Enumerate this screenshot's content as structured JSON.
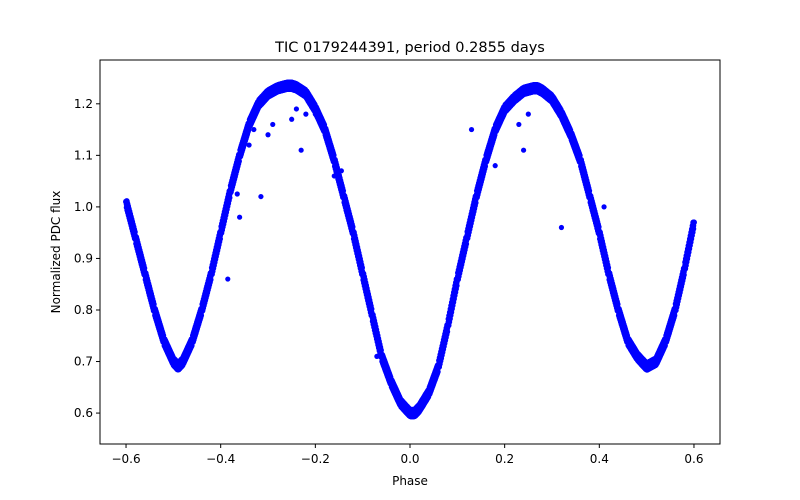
{
  "chart_data": {
    "type": "scatter",
    "title": "TIC 0179244391, period 0.2855 days",
    "xlabel": "Phase",
    "ylabel": "Normalized PDC flux",
    "xlim": [
      -0.655,
      0.655
    ],
    "ylim": [
      0.54,
      1.285
    ],
    "grid": false,
    "marker_color": "#0000ff",
    "x_ticks": [
      {
        "value": -0.6,
        "label": "−0.6"
      },
      {
        "value": -0.4,
        "label": "−0.4"
      },
      {
        "value": -0.2,
        "label": "−0.2"
      },
      {
        "value": 0.0,
        "label": "0.0"
      },
      {
        "value": 0.2,
        "label": "0.2"
      },
      {
        "value": 0.4,
        "label": "0.4"
      },
      {
        "value": 0.6,
        "label": "0.6"
      }
    ],
    "y_ticks": [
      {
        "value": 0.6,
        "label": "0.6"
      },
      {
        "value": 0.7,
        "label": "0.7"
      },
      {
        "value": 0.8,
        "label": "0.8"
      },
      {
        "value": 0.9,
        "label": "0.9"
      },
      {
        "value": 1.0,
        "label": "1.0"
      },
      {
        "value": 1.1,
        "label": "1.1"
      },
      {
        "value": 1.2,
        "label": "1.2"
      }
    ],
    "series": [
      {
        "x": [
          -0.6,
          -0.58,
          -0.56,
          -0.54,
          -0.52,
          -0.5,
          -0.49,
          -0.48,
          -0.46,
          -0.44,
          -0.42,
          -0.4,
          -0.38,
          -0.36,
          -0.34,
          -0.32,
          -0.3,
          -0.28,
          -0.26,
          -0.25,
          -0.24,
          -0.22,
          -0.2,
          -0.18,
          -0.16,
          -0.14,
          -0.12,
          -0.1,
          -0.08,
          -0.06,
          -0.04,
          -0.02,
          0.0,
          0.01,
          0.02,
          0.04,
          0.06,
          0.08,
          0.1,
          0.12,
          0.14,
          0.16,
          0.18,
          0.2,
          0.22,
          0.24,
          0.26,
          0.27,
          0.28,
          0.3,
          0.32,
          0.34,
          0.36,
          0.38,
          0.4,
          0.42,
          0.44,
          0.46,
          0.48,
          0.5,
          0.51,
          0.52,
          0.54,
          0.56,
          0.58,
          0.6
        ],
        "y": [
          1.01,
          0.94,
          0.87,
          0.8,
          0.74,
          0.7,
          0.69,
          0.7,
          0.74,
          0.8,
          0.87,
          0.95,
          1.03,
          1.1,
          1.16,
          1.2,
          1.22,
          1.23,
          1.235,
          1.235,
          1.232,
          1.22,
          1.19,
          1.15,
          1.09,
          1.02,
          0.95,
          0.87,
          0.79,
          0.71,
          0.66,
          0.62,
          0.6,
          0.6,
          0.61,
          0.64,
          0.69,
          0.77,
          0.86,
          0.94,
          1.02,
          1.09,
          1.15,
          1.19,
          1.21,
          1.225,
          1.23,
          1.23,
          1.225,
          1.21,
          1.18,
          1.14,
          1.09,
          1.02,
          0.95,
          0.87,
          0.8,
          0.74,
          0.71,
          0.69,
          0.695,
          0.7,
          0.74,
          0.8,
          0.88,
          0.97
        ]
      }
    ],
    "outliers": {
      "x": [
        -0.385,
        -0.365,
        -0.36,
        -0.34,
        -0.33,
        -0.315,
        -0.3,
        -0.29,
        -0.25,
        -0.24,
        -0.23,
        -0.22,
        -0.2,
        -0.16,
        -0.15,
        -0.145,
        -0.07,
        0.13,
        0.18,
        0.23,
        0.24,
        0.25,
        0.32,
        0.41
      ],
      "y": [
        0.86,
        1.025,
        0.98,
        1.12,
        1.15,
        1.02,
        1.14,
        1.16,
        1.17,
        1.19,
        1.11,
        1.18,
        1.18,
        1.06,
        1.05,
        1.07,
        0.71,
        1.15,
        1.08,
        1.16,
        1.11,
        1.18,
        0.96,
        1.0
      ]
    }
  }
}
